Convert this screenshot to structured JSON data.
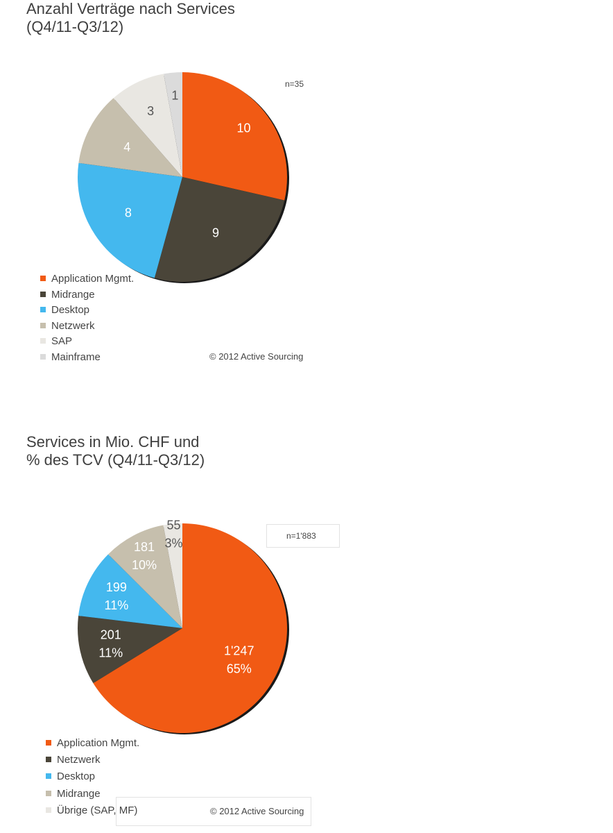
{
  "chart_data": [
    {
      "type": "pie",
      "title": [
        "Anzahl Verträge nach Services",
        "(Q4/11-Q3/12)"
      ],
      "note": "n=35",
      "copyright": "© 2012 Active Sourcing",
      "slices": [
        {
          "name": "Application Mgmt.",
          "value": 10,
          "labels": [
            "10"
          ],
          "color": "#f15a14",
          "label_color": "#ffffff"
        },
        {
          "name": "Midrange",
          "value": 9,
          "labels": [
            "9"
          ],
          "color": "#4a4539",
          "label_color": "#ffffff"
        },
        {
          "name": "Desktop",
          "value": 8,
          "labels": [
            "8"
          ],
          "color": "#44b8ee",
          "label_color": "#ffffff"
        },
        {
          "name": "Netzwerk",
          "value": 4,
          "labels": [
            "4"
          ],
          "color": "#c6bfad",
          "label_color": "#ffffff"
        },
        {
          "name": "SAP",
          "value": 3,
          "labels": [
            "3"
          ],
          "color": "#e9e7e2",
          "label_color": "#555555"
        },
        {
          "name": "Mainframe",
          "value": 1,
          "labels": [
            "1"
          ],
          "color": "#dbdbdb",
          "label_color": "#555555"
        }
      ]
    },
    {
      "type": "pie",
      "title": [
        "Services in Mio. CHF und",
        "% des TCV (Q4/11-Q3/12)"
      ],
      "note": "n=1'883",
      "copyright": "© 2012 Active Sourcing",
      "slices": [
        {
          "name": "Application Mgmt.",
          "value": 1247,
          "labels": [
            "1'247",
            "65%"
          ],
          "color": "#f15a14",
          "label_color": "#ffffff"
        },
        {
          "name": "Netzwerk",
          "value": 201,
          "labels": [
            "201",
            "11%"
          ],
          "color": "#4a4539",
          "label_color": "#ffffff"
        },
        {
          "name": "Desktop",
          "value": 199,
          "labels": [
            "199",
            "11%"
          ],
          "color": "#44b8ee",
          "label_color": "#ffffff"
        },
        {
          "name": "Midrange",
          "value": 181,
          "labels": [
            "181",
            "10%"
          ],
          "color": "#c6bfad",
          "label_color": "#ffffff"
        },
        {
          "name": "Übrige (SAP, MF)",
          "value": 55,
          "labels": [
            "55",
            "3%"
          ],
          "color": "#e9e7e2",
          "label_color": "#555555"
        }
      ]
    }
  ]
}
